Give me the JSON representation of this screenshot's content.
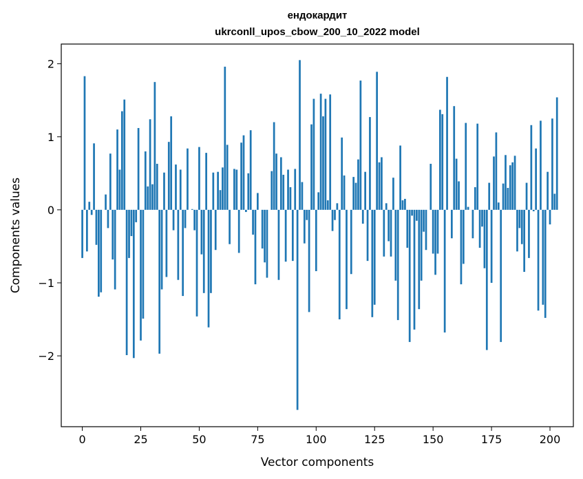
{
  "chart_data": {
    "type": "bar",
    "title_line1": "ендокардит",
    "title_line2": "ukrconll_upos_cbow_200_10_2022 model",
    "xlabel": "Vector components",
    "ylabel": "Components values",
    "xlim": [
      -9,
      210
    ],
    "ylim": [
      -2.97,
      2.27
    ],
    "xticks": [
      0,
      25,
      50,
      75,
      100,
      125,
      150,
      175,
      200
    ],
    "xtick_labels": [
      "0",
      "25",
      "50",
      "75",
      "100",
      "125",
      "150",
      "175",
      "200"
    ],
    "yticks": [
      -2,
      -1,
      0,
      1,
      2
    ],
    "ytick_labels": [
      "−2",
      "−1",
      "0",
      "1",
      "2"
    ],
    "bar_color": "#1f77b4",
    "values": [
      -0.66,
      1.83,
      -0.57,
      0.11,
      -0.07,
      0.91,
      -0.48,
      -1.19,
      -1.13,
      0.0,
      0.21,
      -0.25,
      0.77,
      -0.68,
      -1.09,
      1.1,
      0.55,
      1.35,
      1.51,
      -1.99,
      -0.66,
      -0.36,
      -2.03,
      -0.17,
      1.12,
      -1.79,
      -1.49,
      0.8,
      0.32,
      1.24,
      0.35,
      1.75,
      0.63,
      -1.97,
      -1.09,
      0.51,
      -0.92,
      0.93,
      1.28,
      -0.28,
      0.62,
      -0.96,
      0.55,
      -1.18,
      -0.25,
      0.84,
      0.0,
      0.01,
      -0.28,
      -1.46,
      0.86,
      -0.61,
      -1.14,
      0.78,
      -1.61,
      -1.14,
      0.51,
      -0.55,
      0.52,
      0.27,
      0.58,
      1.96,
      0.89,
      -0.47,
      0.0,
      0.56,
      0.55,
      -0.59,
      0.92,
      1.02,
      -0.03,
      0.5,
      1.09,
      -0.34,
      -1.02,
      0.23,
      0.0,
      -0.53,
      -0.72,
      -0.93,
      0.0,
      0.53,
      1.2,
      0.77,
      -0.96,
      0.72,
      0.48,
      -0.71,
      0.55,
      0.31,
      -0.7,
      0.56,
      -2.74,
      2.05,
      0.38,
      -0.46,
      -0.14,
      -1.4,
      1.17,
      1.52,
      -0.84,
      0.24,
      1.59,
      1.28,
      1.52,
      0.13,
      1.58,
      -0.29,
      -0.14,
      0.09,
      -1.5,
      0.99,
      0.47,
      -1.36,
      0.0,
      -0.88,
      0.45,
      0.37,
      0.69,
      1.77,
      -0.19,
      0.52,
      -0.7,
      1.27,
      -1.47,
      -1.3,
      1.89,
      0.65,
      0.72,
      -0.64,
      0.09,
      -0.43,
      -0.64,
      0.44,
      -0.97,
      -1.51,
      0.88,
      0.13,
      0.15,
      -0.52,
      -1.81,
      -0.08,
      -1.64,
      -0.15,
      -1.36,
      -0.97,
      -0.3,
      -0.55,
      0.0,
      0.63,
      -0.6,
      -0.89,
      -0.6,
      1.37,
      1.31,
      -1.68,
      1.82,
      0.0,
      -0.39,
      1.42,
      0.7,
      0.39,
      -1.02,
      -0.74,
      1.19,
      0.04,
      0.0,
      -0.39,
      0.31,
      1.18,
      -0.52,
      -0.23,
      -0.8,
      -1.92,
      0.37,
      -1.0,
      0.73,
      1.06,
      0.1,
      -1.81,
      0.36,
      0.75,
      0.3,
      0.61,
      0.65,
      0.74,
      -0.57,
      -0.25,
      -0.47,
      -0.85,
      0.37,
      -0.66,
      1.16,
      -0.02,
      0.84,
      -1.38,
      1.22,
      -1.3,
      -1.48,
      0.52,
      -0.2,
      1.25,
      0.22,
      1.54
    ]
  }
}
